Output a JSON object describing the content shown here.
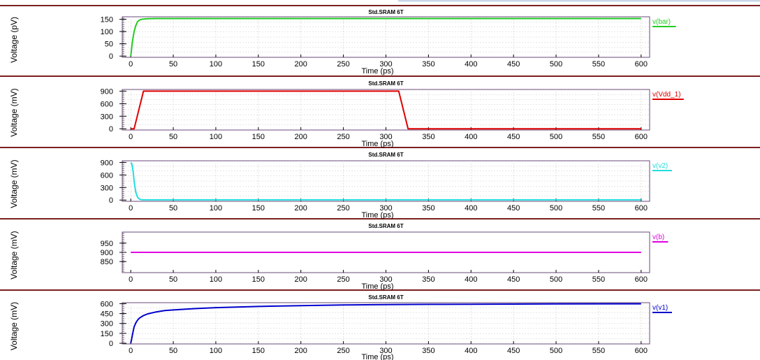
{
  "chart_data": [
    {
      "type": "line",
      "title": "Std.SRAM 6T",
      "xlabel": "Time (ps)",
      "ylabel": "Voltage (pV)",
      "xlim": [
        -10,
        610
      ],
      "ylim": [
        -5,
        160
      ],
      "xticks": [
        0,
        50,
        100,
        150,
        200,
        250,
        300,
        350,
        400,
        450,
        500,
        550,
        600
      ],
      "yticks": [
        0,
        50,
        100,
        150
      ],
      "grid": true,
      "legend_position": "right",
      "series": [
        {
          "name": "v(bar)",
          "color": "#22cc22",
          "x": [
            0,
            1,
            2,
            4,
            6,
            8,
            10,
            12,
            15,
            20,
            30,
            40,
            600
          ],
          "y": [
            0,
            30,
            60,
            100,
            125,
            140,
            146,
            149,
            151,
            152,
            153,
            153,
            153
          ]
        }
      ]
    },
    {
      "type": "line",
      "title": "Std.SRAM 6T",
      "xlabel": "Time (ps)",
      "ylabel": "Voltage (mV)",
      "xlim": [
        -10,
        610
      ],
      "ylim": [
        -30,
        940
      ],
      "xticks": [
        0,
        50,
        100,
        150,
        200,
        250,
        300,
        350,
        400,
        450,
        500,
        550,
        600
      ],
      "yticks": [
        0,
        300,
        600,
        900
      ],
      "grid": true,
      "legend_position": "right",
      "series": [
        {
          "name": "v(Vdd_1)",
          "color": "#e00000",
          "x": [
            0,
            4,
            15,
            315,
            326,
            600
          ],
          "y": [
            0,
            0,
            900,
            900,
            0,
            0
          ]
        }
      ]
    },
    {
      "type": "line",
      "title": "Std.SRAM 6T",
      "xlabel": "Time (ps)",
      "ylabel": "Voltage (mV)",
      "xlim": [
        -10,
        610
      ],
      "ylim": [
        -30,
        940
      ],
      "xticks": [
        0,
        50,
        100,
        150,
        200,
        250,
        300,
        350,
        400,
        450,
        500,
        550,
        600
      ],
      "yticks": [
        0,
        300,
        600,
        900
      ],
      "grid": true,
      "legend_position": "right",
      "series": [
        {
          "name": "v(v2)",
          "color": "#22dddd",
          "x": [
            0,
            1,
            2,
            3,
            4,
            5,
            6,
            8,
            10,
            12,
            15,
            600
          ],
          "y": [
            900,
            880,
            800,
            650,
            450,
            300,
            180,
            70,
            25,
            10,
            5,
            5
          ]
        }
      ]
    },
    {
      "type": "line",
      "title": "Std.SRAM 6T",
      "xlabel": "Time (ps)",
      "ylabel": "Voltage (mV)",
      "xlim": [
        -10,
        610
      ],
      "ylim": [
        790,
        1010
      ],
      "xticks": [
        0,
        50,
        100,
        150,
        200,
        250,
        300,
        350,
        400,
        450,
        500,
        550,
        600
      ],
      "yticks": [
        850,
        900,
        950
      ],
      "grid": false,
      "legend_position": "right",
      "series": [
        {
          "name": "v(b)",
          "color": "#e000e0",
          "x": [
            0,
            600
          ],
          "y": [
            900,
            900
          ]
        }
      ]
    },
    {
      "type": "line",
      "title": "Std.SRAM 6T",
      "xlabel": "Time (ps)",
      "ylabel": "Voltage (mV)",
      "xlim": [
        -10,
        610
      ],
      "ylim": [
        -10,
        615
      ],
      "xticks": [
        0,
        50,
        100,
        150,
        200,
        250,
        300,
        350,
        400,
        450,
        500,
        550,
        600
      ],
      "yticks": [
        0,
        150,
        300,
        450,
        600
      ],
      "grid": true,
      "legend_position": "right",
      "series": [
        {
          "name": "v(v1)",
          "color": "#0000cc",
          "x": [
            0,
            1,
            2,
            3,
            4,
            6,
            8,
            10,
            15,
            20,
            30,
            40,
            50,
            75,
            100,
            150,
            200,
            250,
            300,
            350,
            400,
            500,
            600
          ],
          "y": [
            0,
            60,
            130,
            190,
            250,
            310,
            350,
            380,
            420,
            445,
            475,
            495,
            505,
            525,
            540,
            558,
            570,
            580,
            585,
            590,
            592,
            596,
            598
          ]
        }
      ]
    }
  ]
}
